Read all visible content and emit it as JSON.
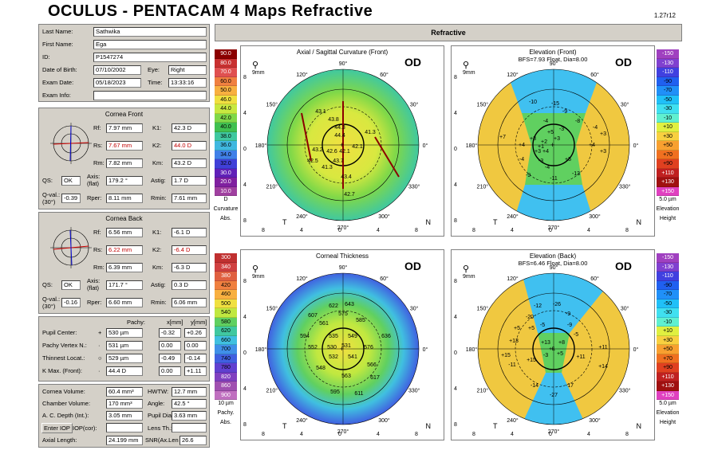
{
  "header": {
    "title": "OCULUS  -  PENTACAM   4 Maps Refractive",
    "version": "1.27r12"
  },
  "patient": {
    "last_name_label": "Last Name:",
    "last_name": "Sathwika",
    "first_name_label": "First Name:",
    "first_name": "Ega",
    "id_label": "ID:",
    "id": "P1547274",
    "dob_label": "Date of Birth:",
    "dob": "07/10/2002",
    "eye_label": "Eye:",
    "eye": "Right",
    "exam_date_label": "Exam Date:",
    "exam_date": "05/18/2023",
    "time_label": "Time:",
    "time": "13:33:16",
    "exam_info_label": "Exam Info:",
    "exam_info": ""
  },
  "cornea_front": {
    "title": "Cornea Front",
    "rf_label": "Rf:",
    "rf": "7.97 mm",
    "k1_label": "K1:",
    "k1": "42.3 D",
    "rs_label": "Rs:",
    "rs": "7.67 mm",
    "k2_label": "K2:",
    "k2": "44.0 D",
    "rm_label": "Rm:",
    "rm": "7.82 mm",
    "km_label": "Km:",
    "km": "43.2 D",
    "qs_label": "QS:",
    "qs": "OK",
    "axis_label": "Axis:",
    "axis_sub": "(flat)",
    "axis": "179.2 °",
    "astig_label": "Astig:",
    "astig": "1.7 D",
    "qval_label": "Q-val.:",
    "qval_sub": "(30°)",
    "qval": "-0.39",
    "rper_label": "Rper:",
    "rper": "8.11 mm",
    "rmin_label": "Rmin:",
    "rmin": "7.61 mm"
  },
  "cornea_back": {
    "title": "Cornea Back",
    "rf_label": "Rf:",
    "rf": "6.56 mm",
    "k1_label": "K1:",
    "k1": "-6.1 D",
    "rs_label": "Rs:",
    "rs": "6.22 mm",
    "k2_label": "K2:",
    "k2": "-6.4 D",
    "rm_label": "Rm:",
    "rm": "6.39 mm",
    "km_label": "Km:",
    "km": "-6.3 D",
    "qs_label": "QS:",
    "qs": "OK",
    "axis_label": "Axis:",
    "axis_sub": "(flat)",
    "axis": "171.7 °",
    "astig_label": "Astig:",
    "astig": "0.3 D",
    "qval_label": "Q-val.:",
    "qval_sub": "(30°)",
    "qval": "-0.16",
    "rper_label": "Rper:",
    "rper": "6.60 mm",
    "rmin_label": "Rmin:",
    "rmin": "6.06 mm"
  },
  "pachy": {
    "pachy_label": "Pachy:",
    "x_label": "x[mm]",
    "y_label": "y[mm]",
    "rows": [
      {
        "label": "Pupil Center:",
        "sym": "+",
        "value": "530 µm",
        "x": "-0.32",
        "y": "+0.26"
      },
      {
        "label": "Pachy Vertex N.:",
        "sym": "·",
        "value": "531 µm",
        "x": "0.00",
        "y": "0.00"
      },
      {
        "label": "Thinnest Locat.:",
        "sym": "○",
        "value": "529 µm",
        "x": "-0.49",
        "y": "-0.14"
      },
      {
        "label": "K Max. (Front):",
        "sym": "·",
        "value": "44.4 D",
        "x": "0.00",
        "y": "+1.11"
      }
    ]
  },
  "volumes": {
    "cornea_volume_label": "Cornea Volume:",
    "cornea_volume": "60.4 mm³",
    "hwtw_label": "HWTW:",
    "hwtw": "12.7 mm",
    "chamber_volume_label": "Chamber Volume:",
    "chamber_volume": "170 mm³",
    "angle_label": "Angle:",
    "angle": "42.5 °",
    "acd_label": "A. C. Depth (Int.):",
    "acd": "3.05 mm",
    "pupil_dia_label": "Pupil Dia:",
    "pupil_dia": "3.63 mm",
    "enter_iop_label": "Enter IOP",
    "iop_cor_label": "IOP(cor):",
    "iop_cor": "",
    "lens_th_label": "Lens Th.:",
    "lens_th": "",
    "axial_length_label": "Axial Length:",
    "axial_length": "24.199 mm",
    "snr_label": "SNR(Ax.Len",
    "snr": "26.6"
  },
  "refractive_bar": "Refractive",
  "scales": {
    "curvature": {
      "values": [
        "90.0",
        "80.0",
        "70.0",
        "60.0",
        "50.0",
        "46.0",
        "44.0",
        "42.0",
        "40.0",
        "38.0",
        "36.0",
        "34.0",
        "32.0",
        "30.0",
        "20.0",
        "10.0"
      ],
      "colors": [
        "#8b0000",
        "#c83030",
        "#e05050",
        "#f08040",
        "#f8b040",
        "#f0e040",
        "#c8e840",
        "#80d848",
        "#40c050",
        "#40c8a0",
        "#40b8e0",
        "#4080e8",
        "#4040d8",
        "#6020b8",
        "#8020a0",
        "#a040a0"
      ],
      "unit": "D",
      "label": "Curvature",
      "sub": "Abs."
    },
    "elevation_front": {
      "values": [
        "-150",
        "-130",
        "-110",
        "-90",
        "-70",
        "-50",
        "-30",
        "-10",
        "+10",
        "+30",
        "+50",
        "+70",
        "+90",
        "+110",
        "+130",
        "+150"
      ],
      "colors": [
        "#a040c0",
        "#8040d0",
        "#4040e0",
        "#2060f0",
        "#2090f8",
        "#20c0f8",
        "#40e0f0",
        "#60f0d0",
        "#e0f040",
        "#f8d040",
        "#f8a030",
        "#f07020",
        "#e04020",
        "#c02020",
        "#a01010",
        "#e040c0"
      ],
      "unit": "5.0 µm",
      "label": "Elevation",
      "sub": "Height"
    },
    "thickness": {
      "values": [
        "300",
        "340",
        "380",
        "420",
        "460",
        "500",
        "540",
        "580",
        "620",
        "660",
        "700",
        "740",
        "780",
        "820",
        "860",
        "900"
      ],
      "colors": [
        "#c03030",
        "#d04040",
        "#e06040",
        "#f08040",
        "#f8b040",
        "#f0e040",
        "#c0e840",
        "#60d060",
        "#40c8a0",
        "#40c0e0",
        "#4090e8",
        "#4060e0",
        "#6040d0",
        "#8040c0",
        "#a050b0",
        "#c070c0"
      ],
      "unit": "10 µm",
      "label": "Pachy.",
      "sub": "Abs."
    },
    "elevation_back": {
      "values": [
        "-150",
        "-130",
        "-110",
        "-90",
        "-70",
        "-50",
        "-30",
        "-10",
        "+10",
        "+30",
        "+50",
        "+70",
        "+90",
        "+110",
        "+130",
        "+150"
      ],
      "colors": [
        "#a040c0",
        "#8040d0",
        "#4040e0",
        "#2060f0",
        "#2090f8",
        "#20c0f8",
        "#40e0f0",
        "#60f0d0",
        "#e0f040",
        "#f8d040",
        "#f8a030",
        "#f07020",
        "#e04020",
        "#c02020",
        "#a01010",
        "#e040c0"
      ],
      "unit": "5.0 µm",
      "label": "Elevation",
      "sub": "Height"
    }
  },
  "maps": {
    "axial": {
      "title": "Axial / Sagittal Curvature (Front)",
      "subtitle": "",
      "eye": "OD",
      "zoom": "9mm",
      "labels": [
        "43.1",
        "43.8",
        "44.3",
        "44.4",
        "43.2",
        "42.6",
        "42.1",
        "42.1",
        "41.3",
        "42.5",
        "43.7",
        "41.3",
        "43.4",
        "42.7"
      ]
    },
    "elev_front": {
      "title": "Elevation (Front)",
      "subtitle": "BFS=7.93 Float, Dia=8.00",
      "eye": "OD",
      "zoom": "9mm",
      "labels": [
        "-10",
        "-15",
        "-9",
        "-4",
        "-8",
        "-4",
        "+7",
        "+3",
        "+3",
        "+1",
        "+2",
        "+3",
        "+4",
        "+5",
        "-3",
        "-4",
        "+3",
        "-11",
        "-13",
        "-9",
        "+4",
        "+3",
        "+4",
        "-4",
        "-3",
        "+5"
      ]
    },
    "thickness": {
      "title": "Corneal Thickness",
      "subtitle": "",
      "eye": "OD",
      "zoom": "9mm",
      "labels": [
        "622",
        "643",
        "575",
        "607",
        "561",
        "585",
        "594",
        "552",
        "535",
        "549",
        "636",
        "531",
        "576",
        "530",
        "532",
        "541",
        "566",
        "548",
        "563",
        "617",
        "595",
        "611"
      ]
    },
    "elev_back": {
      "title": "Elevation (Back)",
      "subtitle": "BFS=6.46 Float, Dia=8.00",
      "eye": "OD",
      "zoom": "9mm",
      "labels": [
        "-12",
        "-26",
        "-9",
        "-20",
        "+5",
        "-5",
        "-9",
        "+13",
        "+13",
        "+1",
        "-3",
        "+5",
        "+8",
        "+11",
        "+11",
        "-11",
        "+15",
        "-14",
        "-17",
        "+14",
        "+15",
        "-27",
        "-5",
        "+5"
      ]
    }
  },
  "axes": {
    "x_ticks": [
      "8",
      "4",
      "0",
      "4",
      "8"
    ],
    "y_ticks": [
      "8",
      "4",
      "0",
      "4",
      "8"
    ],
    "left_letter": "T",
    "right_letter": "N",
    "degrees": [
      "90°",
      "120°",
      "150°",
      "180°",
      "210°",
      "240°",
      "270°",
      "300°",
      "330°",
      "0°",
      "30°",
      "60°"
    ]
  }
}
